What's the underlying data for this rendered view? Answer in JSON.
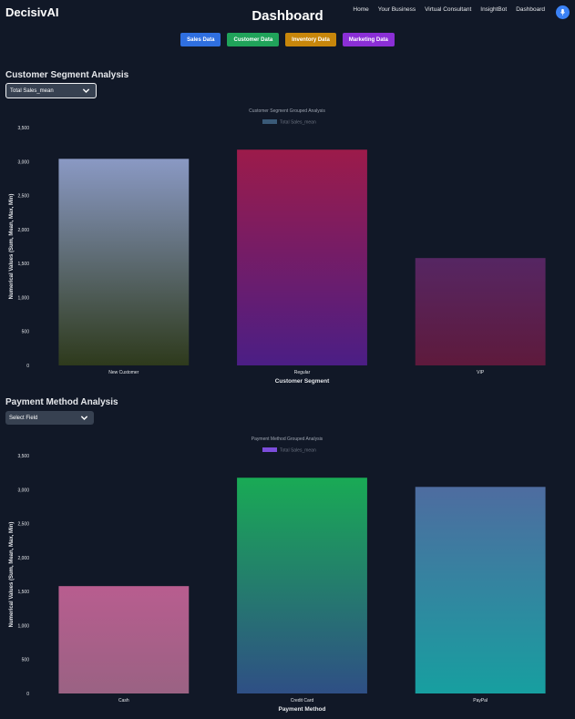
{
  "header": {
    "brand": "DecisivAI",
    "title": "Dashboard",
    "nav": [
      "Home",
      "Your Business",
      "Virtual Consultant",
      "InsightBot",
      "Dashboard"
    ]
  },
  "tabs": [
    {
      "label": "Sales Data",
      "color": "#2f6fe0"
    },
    {
      "label": "Customer Data",
      "color": "#20a35a"
    },
    {
      "label": "Inventory Data",
      "color": "#c7860b"
    },
    {
      "label": "Marketing Data",
      "color": "#8b2fd6"
    }
  ],
  "customer_section": {
    "title": "Customer Segment Analysis",
    "select_value": "Total Sales_mean"
  },
  "payment_section": {
    "title": "Payment Method Analysis",
    "select_value": "Select Field"
  },
  "chart_data": [
    {
      "type": "bar",
      "title": "Customer Segment Grouped Analysis",
      "legend": "Total Sales_mean",
      "legend_color": "#3a5a78",
      "xlabel": "Customer Segment",
      "ylabel": "Numerical Values (Sum, Mean, Max, Min)",
      "categories": [
        "New Customer",
        "Regular",
        "VIP"
      ],
      "values": [
        3040,
        3175,
        1580
      ],
      "ylim": [
        0,
        3500
      ],
      "yticks": [
        0,
        500,
        1000,
        1500,
        2000,
        2500,
        3000,
        3500
      ],
      "ytick_labels": [
        "0",
        "500",
        "1,000",
        "1,500",
        "2,000",
        "2,500",
        "3,000",
        "3,500"
      ],
      "bar_gradients": [
        [
          "#8a99c4",
          "#2e3a1c"
        ],
        [
          "#9c1b4a",
          "#4b1e85"
        ],
        [
          "#562663",
          "#5e1a3c"
        ]
      ]
    },
    {
      "type": "bar",
      "title": "Payment Method Grouped Analysis",
      "legend": "Total Sales_mean",
      "legend_color": "#7c4ddb",
      "xlabel": "Payment Method",
      "ylabel": "Numerical Values (Sum, Mean, Max, Min)",
      "categories": [
        "Cash",
        "Credit Card",
        "PayPal"
      ],
      "values": [
        1580,
        3175,
        3040
      ],
      "ylim": [
        0,
        3500
      ],
      "yticks": [
        0,
        500,
        1000,
        1500,
        2000,
        2500,
        3000,
        3500
      ],
      "ytick_labels": [
        "0",
        "500",
        "1,000",
        "1,500",
        "2,000",
        "2,500",
        "3,000",
        "3,500"
      ],
      "bar_gradients": [
        [
          "#b85d8f",
          "#9a6283"
        ],
        [
          "#19aa55",
          "#2f4f85"
        ],
        [
          "#4e6ca0",
          "#179fa0"
        ]
      ]
    }
  ]
}
